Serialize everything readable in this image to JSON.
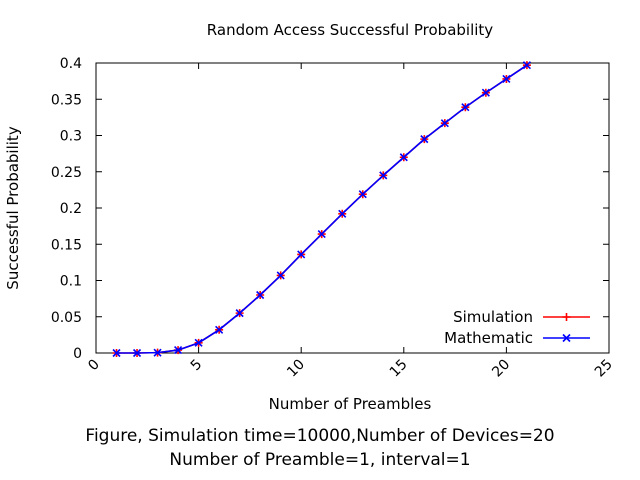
{
  "chart_data": {
    "type": "line",
    "title": "Random Access Successful Probability",
    "xlabel": "Number of Preambles",
    "ylabel": "Successful Probability",
    "xlim": [
      0,
      25
    ],
    "ylim": [
      0,
      0.4
    ],
    "x_ticks": [
      "0",
      "5",
      "10",
      "15",
      "20",
      "25"
    ],
    "y_ticks": [
      "0",
      "0.05",
      "0.1",
      "0.15",
      "0.2",
      "0.25",
      "0.3",
      "0.35",
      "0.4"
    ],
    "x_tick_values": [
      0,
      5,
      10,
      15,
      20,
      25
    ],
    "y_tick_values": [
      0,
      0.05,
      0.1,
      0.15,
      0.2,
      0.25,
      0.3,
      0.35,
      0.4
    ],
    "x": [
      1,
      2,
      3,
      4,
      5,
      6,
      7,
      8,
      9,
      10,
      11,
      12,
      13,
      14,
      15,
      16,
      17,
      18,
      19,
      20,
      21
    ],
    "series": [
      {
        "name": "Simulation",
        "color": "#ff0000",
        "marker": "plus",
        "values": [
          0.0,
          0.0,
          0.0005,
          0.004,
          0.014,
          0.032,
          0.055,
          0.08,
          0.107,
          0.136,
          0.164,
          0.192,
          0.219,
          0.245,
          0.27,
          0.295,
          0.317,
          0.339,
          0.359,
          0.378,
          0.397
        ]
      },
      {
        "name": "Mathematic",
        "color": "#0000ff",
        "marker": "x",
        "values": [
          0.0,
          0.0,
          0.0005,
          0.004,
          0.014,
          0.032,
          0.055,
          0.08,
          0.107,
          0.136,
          0.164,
          0.192,
          0.219,
          0.245,
          0.27,
          0.295,
          0.317,
          0.339,
          0.359,
          0.378,
          0.397
        ]
      }
    ],
    "legend_position": "bottom-right",
    "grid": false
  },
  "caption": {
    "line1": "Figure, Simulation time=10000,Number of Devices=20",
    "line2": "Number of Preamble=1, interval=1"
  }
}
